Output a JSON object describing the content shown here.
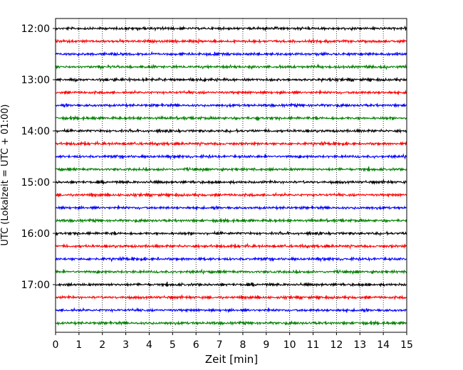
{
  "chart_data": {
    "type": "line",
    "title": "",
    "xlabel": "Zeit  [min]",
    "ylabel": "UTC (Lokalzeit = UTC + 01:00)",
    "xlim": [
      0,
      15
    ],
    "x_ticks": [
      0,
      1,
      2,
      3,
      4,
      5,
      6,
      7,
      8,
      9,
      10,
      11,
      12,
      13,
      14,
      15
    ],
    "x_tick_labels": [
      "0",
      "1",
      "2",
      "3",
      "4",
      "5",
      "6",
      "7",
      "8",
      "9",
      "10",
      "11",
      "12",
      "13",
      "14",
      "15"
    ],
    "y_tick_labels": [
      "12:00",
      "13:00",
      "14:00",
      "15:00",
      "16:00",
      "17:00"
    ],
    "y_tick_rows": [
      0,
      4,
      8,
      12,
      16,
      20
    ],
    "trace_start": "12:00",
    "trace_interval_min": 15,
    "trace_count": 24,
    "trace_colors": [
      "#000000",
      "#ff0000",
      "#0000ff",
      "#008000"
    ],
    "grid": "vertical dotted"
  }
}
